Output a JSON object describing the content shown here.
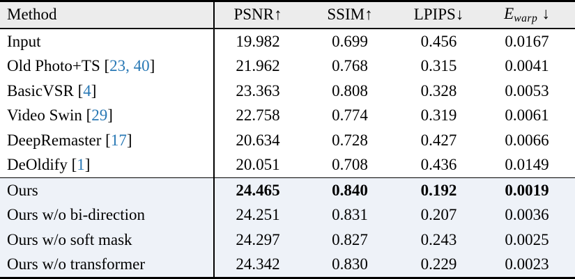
{
  "colors": {
    "citation_blue": "#2878b5",
    "header_bg": "#ececec",
    "ours_section_bg": "#eef2f8",
    "rule_black": "#000000"
  },
  "table": {
    "header": {
      "method": "Method",
      "psnr": "PSNR↑",
      "ssim": "SSIM↑",
      "lpips": "LPIPS↓",
      "ewarp_symbol": "E",
      "ewarp_sub": "warp",
      "ewarp_arrow": "↓"
    },
    "rows": [
      {
        "name": "Input",
        "cite_open": "",
        "cite": "",
        "cite_close": "",
        "psnr": "19.982",
        "ssim": "0.699",
        "lpips": "0.456",
        "ewarp": "0.0167"
      },
      {
        "name": "Old Photo+TS",
        "cite_open": " [",
        "cite": "23, 40",
        "cite_close": "]",
        "psnr": "21.962",
        "ssim": "0.768",
        "lpips": "0.315",
        "ewarp": "0.0041"
      },
      {
        "name": "BasicVSR",
        "cite_open": " [",
        "cite": "4",
        "cite_close": "]",
        "psnr": "23.363",
        "ssim": "0.808",
        "lpips": "0.328",
        "ewarp": "0.0053"
      },
      {
        "name": "Video Swin",
        "cite_open": " [",
        "cite": "29",
        "cite_close": "]",
        "psnr": "22.758",
        "ssim": "0.774",
        "lpips": "0.319",
        "ewarp": "0.0061"
      },
      {
        "name": "DeepRemaster",
        "cite_open": " [",
        "cite": "17",
        "cite_close": "]",
        "psnr": "20.634",
        "ssim": "0.728",
        "lpips": "0.427",
        "ewarp": "0.0066"
      },
      {
        "name": "DeOldify",
        "cite_open": " [",
        "cite": "1",
        "cite_close": "]",
        "psnr": "20.051",
        "ssim": "0.708",
        "lpips": "0.436",
        "ewarp": "0.0149"
      },
      {
        "name": "Ours",
        "cite_open": "",
        "cite": "",
        "cite_close": "",
        "psnr": "24.465",
        "ssim": "0.840",
        "lpips": "0.192",
        "ewarp": "0.0019"
      },
      {
        "name": "Ours w/o bi-direction",
        "cite_open": "",
        "cite": "",
        "cite_close": "",
        "psnr": "24.251",
        "ssim": "0.831",
        "lpips": "0.207",
        "ewarp": "0.0036"
      },
      {
        "name": "Ours w/o soft mask",
        "cite_open": "",
        "cite": "",
        "cite_close": "",
        "psnr": "24.297",
        "ssim": "0.827",
        "lpips": "0.243",
        "ewarp": "0.0025"
      },
      {
        "name": "Ours w/o transformer",
        "cite_open": "",
        "cite": "",
        "cite_close": "",
        "psnr": "24.342",
        "ssim": "0.830",
        "lpips": "0.229",
        "ewarp": "0.0023"
      }
    ]
  }
}
